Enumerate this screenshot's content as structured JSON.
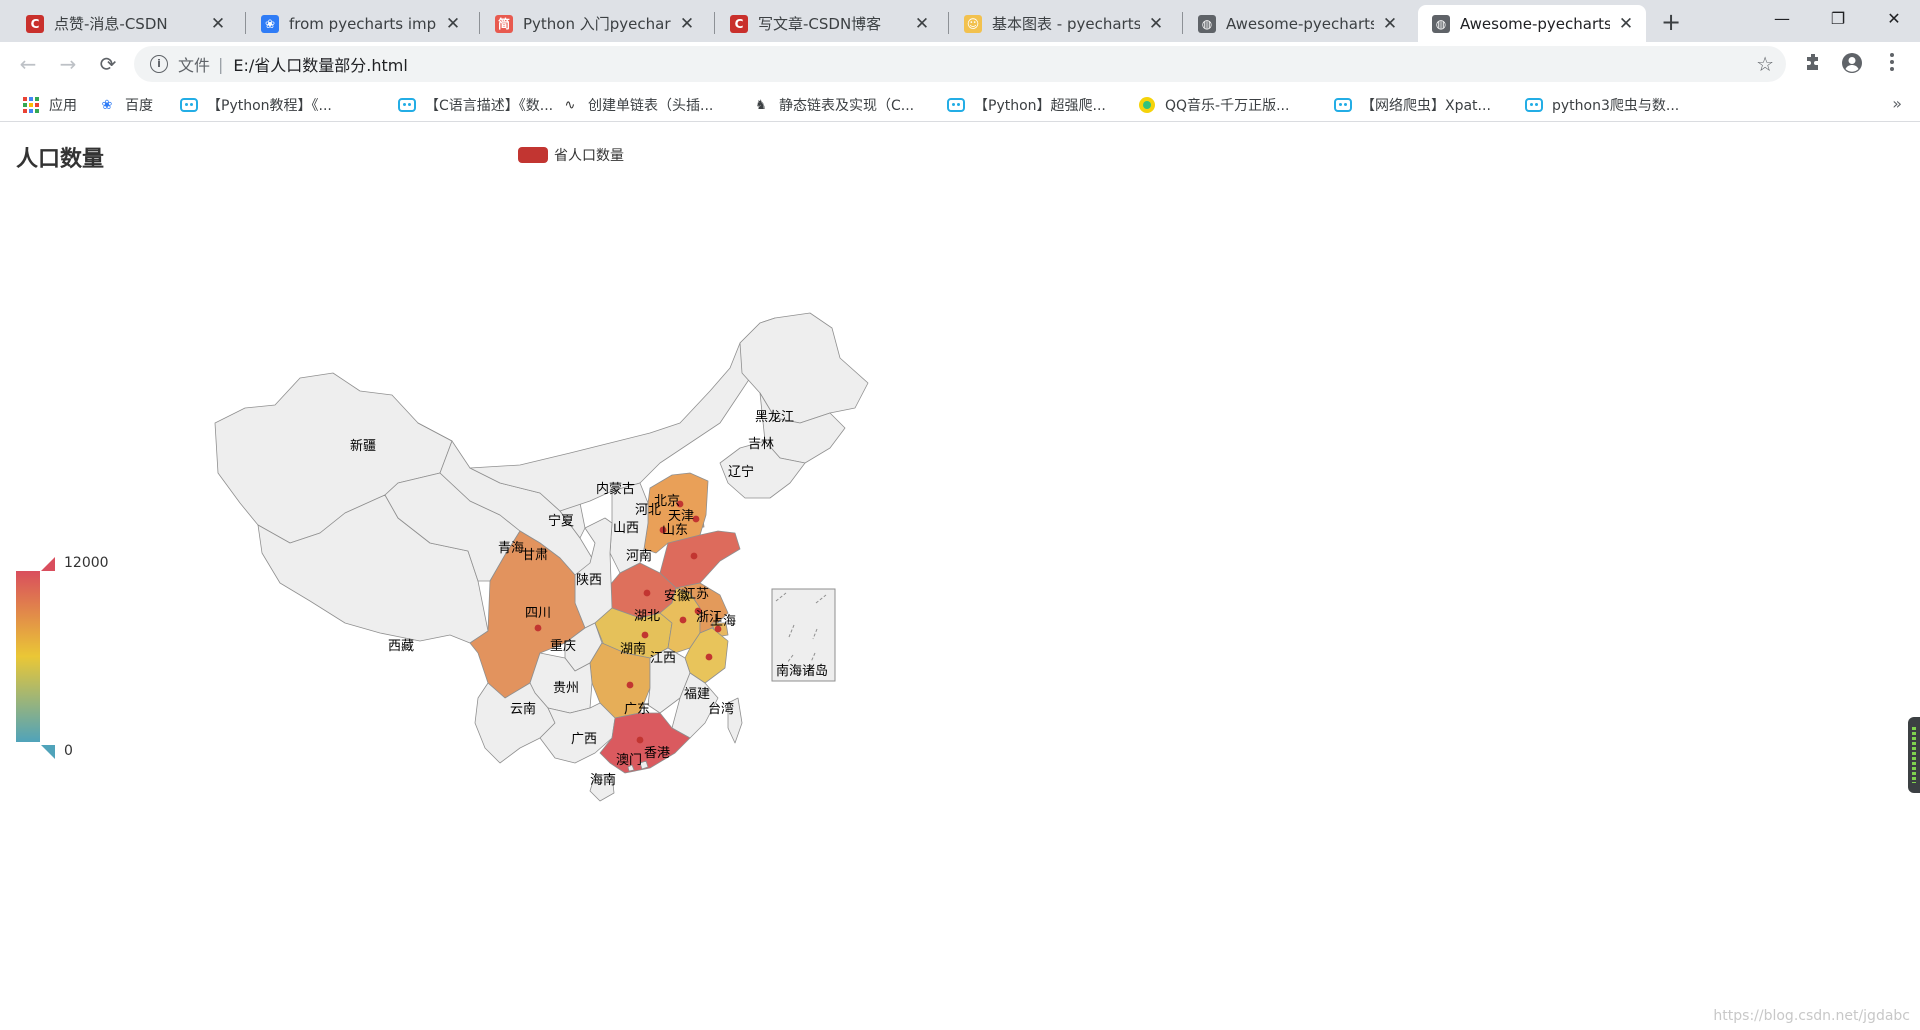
{
  "browser": {
    "tabs": [
      {
        "title": "点赞-消息-CSDN",
        "icon": "csdn-icon",
        "active": false
      },
      {
        "title": "from pyecharts impor",
        "icon": "baidu-paw-icon",
        "active": false
      },
      {
        "title": "Python 入门pyecharts",
        "icon": "jianshu-icon",
        "active": false
      },
      {
        "title": "写文章-CSDN博客",
        "icon": "csdn-icon",
        "active": false
      },
      {
        "title": "基本图表 - pyecharts",
        "icon": "pyecharts-icon",
        "active": false
      },
      {
        "title": "Awesome-pyecharts",
        "icon": "globe-icon",
        "active": false
      },
      {
        "title": "Awesome-pyecharts",
        "icon": "globe-icon",
        "active": true
      }
    ],
    "new_tab": "+",
    "window": {
      "minimize": "—",
      "restore": "❐",
      "close": "✕"
    },
    "nav": {
      "back": "←",
      "forward": "→",
      "reload": "⟳"
    },
    "address": {
      "scheme_label": "文件",
      "separator": "|",
      "url": "E:/省人口数量部分.html",
      "bookmark_star": "☆"
    },
    "bookmarks": [
      {
        "label": "应用",
        "icon": "apps-grid-icon"
      },
      {
        "label": "百度",
        "icon": "baidu-paw-icon"
      },
      {
        "label": "【Python教程】《...",
        "icon": "bilibili-icon"
      },
      {
        "label": "【C语言描述】《数...",
        "icon": "bilibili-icon"
      },
      {
        "label": "创建单链表（头插...",
        "icon": "link-icon"
      },
      {
        "label": "静态链表及实现（C...",
        "icon": "person-icon"
      },
      {
        "label": "【Python】超强爬...",
        "icon": "bilibili-icon"
      },
      {
        "label": "QQ音乐-千万正版...",
        "icon": "qqmusic-icon"
      },
      {
        "label": "【网络爬虫】Xpat...",
        "icon": "bilibili-icon"
      },
      {
        "label": "python3爬虫与数...",
        "icon": "bilibili-icon"
      }
    ],
    "bookmarks_more": "»"
  },
  "chart_data": {
    "type": "map",
    "title": "人口数量",
    "legend": {
      "entries": [
        "省人口数量"
      ],
      "position": "top-center",
      "color": "#c23531"
    },
    "visual_map": {
      "min": 0,
      "max": 12000,
      "colors": [
        "#50a3ba",
        "#eac736",
        "#d94e5d"
      ],
      "position": "bottom-left"
    },
    "regions_with_data": [
      "北京",
      "天津",
      "河北",
      "山东",
      "河南",
      "湖北",
      "湖南",
      "安徽",
      "江苏",
      "浙江",
      "上海",
      "四川",
      "广东"
    ],
    "region_labels": [
      "新疆",
      "西藏",
      "青海",
      "甘肃",
      "宁夏",
      "内蒙古",
      "黑龙江",
      "吉林",
      "辽宁",
      "北京",
      "天津",
      "河北",
      "山西",
      "山东",
      "河南",
      "陕西",
      "四川",
      "重庆",
      "湖北",
      "湖南",
      "安徽",
      "江苏",
      "上海",
      "浙江",
      "江西",
      "福建",
      "台湾",
      "贵州",
      "云南",
      "广西",
      "广东",
      "香港",
      "澳门",
      "海南",
      "南海诸岛"
    ],
    "fill_colors": {
      "北京": "#e9a058",
      "天津": "#e39d5b",
      "河北": "#e9a058",
      "山东": "#dd6b5c",
      "河南": "#de705c",
      "湖北": "#e5c15a",
      "湖南": "#e6ae58",
      "安徽": "#e9be5c",
      "江苏": "#e39a5b",
      "浙江": "#e8c45b",
      "上海": "#e7b860",
      "四川": "#e2935e",
      "广东": "#da5a5f",
      "default": "#eeeeee"
    }
  },
  "page": {
    "watermark": "https://blog.csdn.net/jgdabc"
  }
}
